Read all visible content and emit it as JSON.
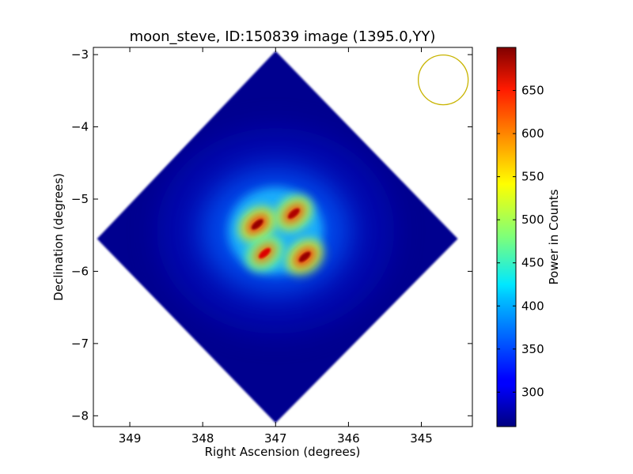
{
  "chart_data": {
    "type": "heatmap",
    "title": "moon_steve, ID:150839 image (1395.0,YY)",
    "xlabel": "Right Ascension (degrees)",
    "ylabel": "Declination (degrees)",
    "xlim": [
      349.5,
      344.3
    ],
    "ylim": [
      -8.15,
      -2.9
    ],
    "x_ticks": [
      349,
      348,
      347,
      346,
      345
    ],
    "x_tick_labels": [
      "349",
      "348",
      "347",
      "346",
      "345"
    ],
    "y_ticks": [
      -3,
      -4,
      -5,
      -6,
      -7,
      -8
    ],
    "y_tick_labels": [
      "−3",
      "−4",
      "−5",
      "−6",
      "−7",
      "−8"
    ],
    "colormap": "jet",
    "colorbar": {
      "label": "Power in Counts",
      "range": [
        260,
        700
      ],
      "ticks": [
        300,
        350,
        400,
        450,
        500,
        550,
        600,
        650
      ],
      "tick_labels": [
        "300",
        "350",
        "400",
        "450",
        "500",
        "550",
        "600",
        "650"
      ]
    },
    "image_footprint": {
      "shape": "diamond",
      "center_ra": 347.0,
      "center_dec": -5.55,
      "extent_ra": [
        349.45,
        344.5
      ],
      "extent_dec": [
        -8.1,
        -2.95
      ],
      "background_level": 265
    },
    "features": [
      {
        "name": "source-blob-upper-left",
        "ra": 347.25,
        "dec": -5.35,
        "peak": 690
      },
      {
        "name": "source-blob-upper-right",
        "ra": 346.75,
        "dec": -5.2,
        "peak": 680
      },
      {
        "name": "source-blob-lower-right",
        "ra": 346.6,
        "dec": -5.8,
        "peak": 690
      },
      {
        "name": "source-blob-lower-left",
        "ra": 347.15,
        "dec": -5.75,
        "peak": 660
      }
    ],
    "beam_marker": {
      "shape": "circle",
      "ra": 344.7,
      "dec": -3.35,
      "radius_deg": 0.38,
      "color": "#c8b400"
    }
  }
}
